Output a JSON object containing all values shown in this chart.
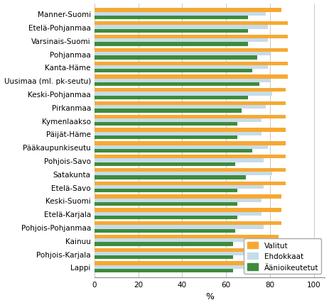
{
  "regions": [
    "Manner-Suomi",
    "Etelä-Pohjanmaa",
    "Varsinais-Suomi",
    "Pohjanmaa",
    "Kanta-Häme",
    "Uusimaa (ml. pk-seutu)",
    "Keski-Pohjanmaa",
    "Pirkanmaa",
    "Kymenlaakso",
    "Päijät-Häme",
    "Pääkaupunkiseutu",
    "Pohjois-Savo",
    "Satakunta",
    "Etelä-Savo",
    "Keski-Suomi",
    "Etelä-Karjala",
    "Pohjois-Pohjanmaa",
    "Kainuu",
    "Pohjois-Karjala",
    "Lappi"
  ],
  "valitut": [
    85,
    88,
    88,
    88,
    88,
    88,
    87,
    87,
    87,
    87,
    87,
    87,
    87,
    87,
    85,
    85,
    85,
    84,
    81,
    81
  ],
  "ehdokkaat": [
    78,
    79,
    79,
    80,
    79,
    80,
    81,
    78,
    76,
    76,
    79,
    77,
    81,
    77,
    76,
    76,
    77,
    72,
    73,
    72
  ],
  "aanioikeutetut": [
    70,
    70,
    70,
    74,
    72,
    75,
    70,
    67,
    65,
    65,
    72,
    64,
    69,
    65,
    65,
    65,
    64,
    63,
    63,
    63
  ],
  "color_valitut": "#f7a832",
  "color_ehdokkaat": "#c5dcea",
  "color_aanioikeutetut": "#3d8c3d",
  "xlabel": "%",
  "xlim": [
    0,
    105
  ],
  "xticks": [
    0,
    20,
    40,
    60,
    80,
    100
  ],
  "legend_labels": [
    "Valitut",
    "Ehdokkaat",
    "Äänioikeutetut"
  ],
  "bar_height": 0.28,
  "figsize": [
    4.63,
    4.31
  ]
}
